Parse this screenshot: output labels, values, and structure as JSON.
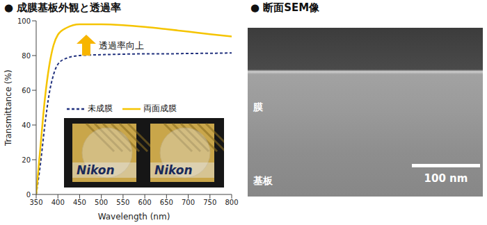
{
  "chart_data": {
    "type": "line",
    "title": "● 成膜基板外観と透過率",
    "x_label": "Wavelength (nm)",
    "y_label": "Transmittance (%)",
    "x": [
      350,
      360,
      370,
      380,
      390,
      400,
      420,
      450,
      500,
      550,
      600,
      650,
      700,
      750,
      800
    ],
    "series": [
      {
        "name": "未成膜",
        "color": "#23337f",
        "line_style": "dashed",
        "values": [
          0,
          18,
          40,
          58,
          69,
          75,
          78.5,
          80,
          80.5,
          80.8,
          81,
          81,
          81.2,
          81.3,
          81.5
        ]
      },
      {
        "name": "両面成膜",
        "color": "#f5c400",
        "line_style": "solid",
        "values": [
          0,
          28,
          55,
          74,
          86,
          92,
          96,
          98,
          98,
          97.5,
          96.5,
          95.2,
          93.8,
          92.3,
          91
        ]
      }
    ],
    "xlim": [
      350,
      800
    ],
    "xticks": [
      350,
      400,
      450,
      500,
      550,
      600,
      650,
      700,
      750,
      800
    ],
    "ylim": [
      0,
      100
    ],
    "yticks": [
      0,
      20,
      40,
      60,
      80,
      100
    ],
    "grid": false,
    "legend": "bottom",
    "annotations": [
      "透過率向上"
    ],
    "inset_labels": [
      "Nikon",
      "Nikon"
    ]
  },
  "sem_image": {
    "title": "● 断面SEM像",
    "labels": [
      "膜",
      "基板"
    ],
    "scale_bar": "100 nm"
  }
}
